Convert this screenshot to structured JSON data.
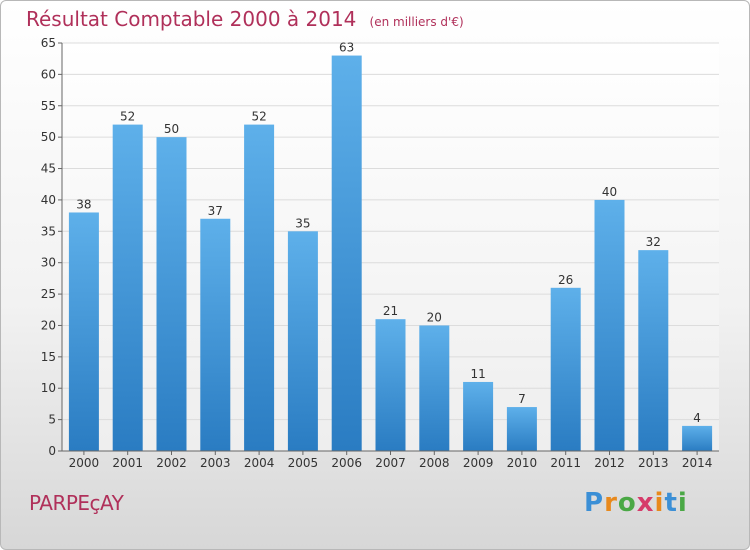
{
  "title": "Résultat Comptable 2000 à 2014",
  "subtitle": "(en milliers d'€)",
  "commune": "PARPEçAY",
  "logo": {
    "text": "Proxiti",
    "letters": [
      "P",
      "r",
      "o",
      "x",
      "i",
      "t",
      "i"
    ],
    "colors": [
      "#3b8fd6",
      "#e8891c",
      "#4aa845",
      "#d63b6a",
      "#e8891c",
      "#3b8fd6",
      "#4aa845"
    ]
  },
  "chart_data": {
    "type": "bar",
    "title": "Résultat Comptable 2000 à 2014",
    "subtitle": "(en milliers d'€)",
    "xlabel": "",
    "ylabel": "",
    "categories": [
      "2000",
      "2001",
      "2002",
      "2003",
      "2004",
      "2005",
      "2006",
      "2007",
      "2008",
      "2009",
      "2010",
      "2011",
      "2012",
      "2013",
      "2014"
    ],
    "values": [
      38,
      52,
      50,
      37,
      52,
      35,
      63,
      21,
      20,
      11,
      7,
      26,
      40,
      32,
      4
    ],
    "ylim": [
      0,
      65
    ],
    "yticks": [
      0,
      5,
      10,
      15,
      20,
      25,
      30,
      35,
      40,
      45,
      50,
      55,
      60,
      65
    ],
    "grid": true,
    "bar_color": "#3b8fd6"
  }
}
